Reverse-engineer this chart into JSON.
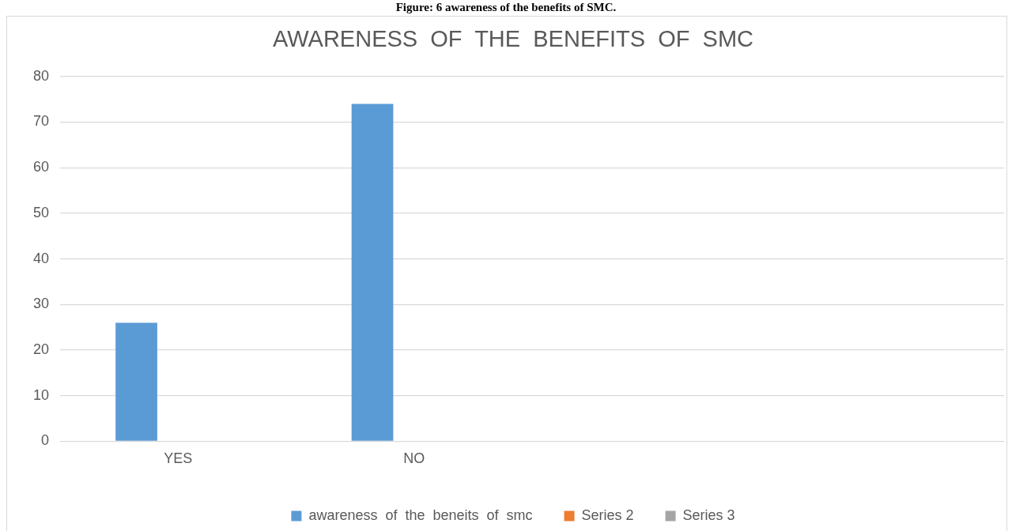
{
  "chart_data": {
    "type": "bar",
    "title": "AWARENESS  OF  THE  BENEFITS  OF  SMC",
    "annotations": [
      "Figure: 6 awareness of the benefits of SMC."
    ],
    "categories": [
      "YES",
      "NO",
      null,
      null
    ],
    "series": [
      {
        "name": "awareness  of  the  beneits  of  smc",
        "color": "#5b9bd5",
        "values": [
          26,
          74,
          null,
          null
        ]
      },
      {
        "name": "Series 2",
        "color": "#ed7d31",
        "values": [
          null,
          null,
          null,
          null
        ]
      },
      {
        "name": "Series 3",
        "color": "#a5a5a5",
        "values": [
          null,
          null,
          null,
          null
        ]
      }
    ],
    "ylim": [
      0,
      80
    ],
    "yticks": [
      0,
      10,
      20,
      30,
      40,
      50,
      60,
      70,
      80
    ],
    "grid": "y",
    "legend": "bottom"
  }
}
